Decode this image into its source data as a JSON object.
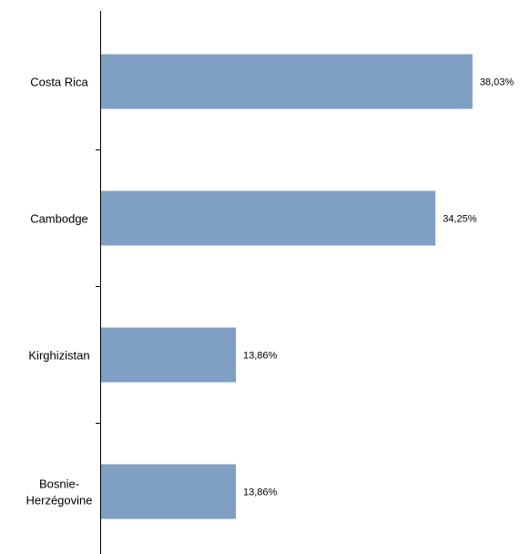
{
  "chart_data": {
    "type": "bar",
    "orientation": "horizontal",
    "categories": [
      "Costa Rica",
      "Cambodge",
      "Kirghizistan",
      "Bosnie-Herzégovine"
    ],
    "category_lines": [
      [
        "Costa Rica"
      ],
      [
        "Cambodge"
      ],
      [
        "Kirghizistan"
      ],
      [
        "Bosnie-",
        "Herzégovine"
      ]
    ],
    "values": [
      38.03,
      34.25,
      13.86,
      13.86
    ],
    "value_labels": [
      "38,03%",
      "34,25%",
      "13,86%",
      "13,86%"
    ],
    "title": "",
    "xlabel": "",
    "ylabel": "",
    "xlim": [
      0,
      40
    ],
    "grid": false,
    "legend": "none",
    "bar_color": "#7f9fc3",
    "axis_color": "#000000"
  }
}
